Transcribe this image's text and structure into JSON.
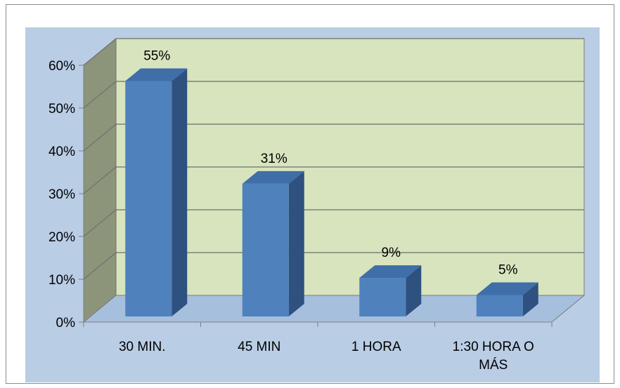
{
  "chart_data": {
    "type": "bar",
    "three_d": true,
    "categories": [
      "30 MIN.",
      "45 MIN",
      "1 HORA",
      "1:30 HORA O MÁS"
    ],
    "values": [
      55,
      31,
      9,
      5
    ],
    "data_labels": [
      "55%",
      "31%",
      "9%",
      "5%"
    ],
    "ylim": [
      0,
      60
    ],
    "yticks": [
      0,
      10,
      20,
      30,
      40,
      50,
      60
    ],
    "ytick_labels": [
      "0%",
      "10%",
      "20%",
      "30%",
      "40%",
      "50%",
      "60%"
    ],
    "grid": true,
    "legend": "none",
    "colors": {
      "plot_area_bg": "#b9cde5",
      "back_wall": "#d7e4bd",
      "side_wall": "#8c957a",
      "floor": "#a6bfdd",
      "bar_front": "#4f81bd",
      "bar_top": "#3f6ea8",
      "bar_side": "#2f5180",
      "grid": "#6f6f6f"
    }
  }
}
